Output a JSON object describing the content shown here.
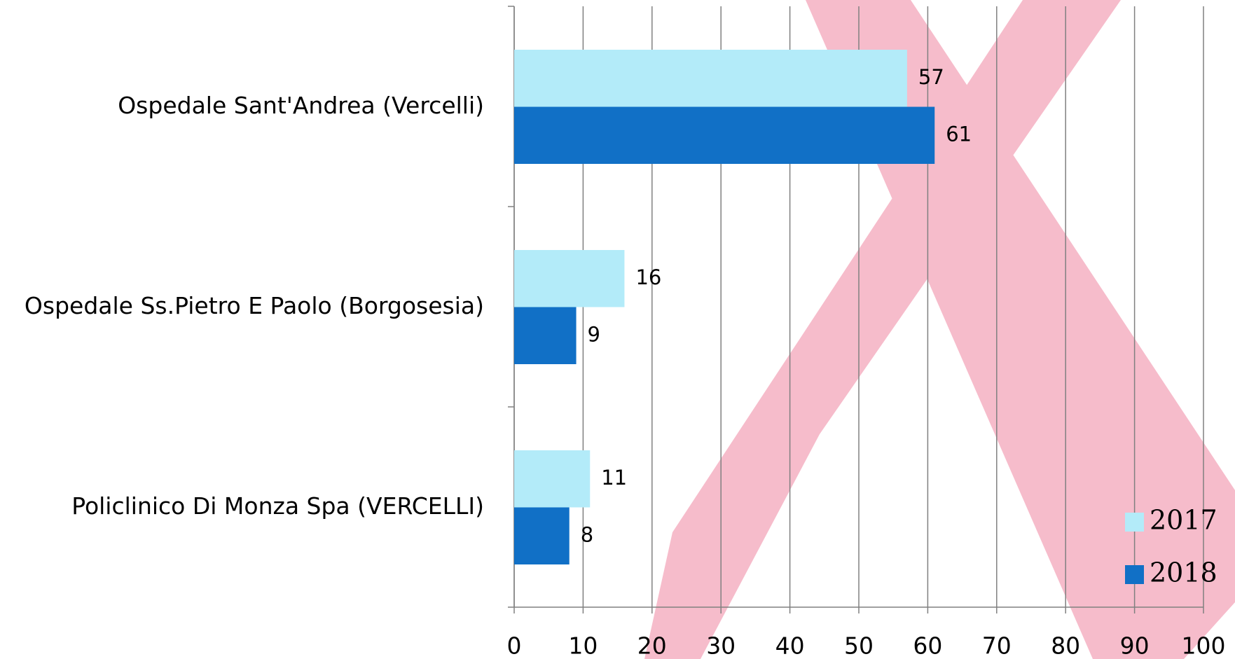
{
  "chart_data": {
    "type": "bar",
    "orientation": "horizontal",
    "categories": [
      "Ospedale Sant'Andrea (Vercelli)",
      "Ospedale Ss.Pietro E Paolo (Borgosesia)",
      "Policlinico Di Monza Spa (VERCELLI)"
    ],
    "series": [
      {
        "name": "2017",
        "color": "#b3ebf9",
        "values": [
          57,
          16,
          11
        ]
      },
      {
        "name": "2018",
        "color": "#1170c6",
        "values": [
          61,
          9,
          8
        ]
      }
    ],
    "xlim": [
      0,
      100
    ],
    "xticks": [
      0,
      10,
      20,
      30,
      40,
      50,
      60,
      70,
      80,
      90,
      100
    ],
    "grid": true,
    "legend": "bottom-right"
  }
}
